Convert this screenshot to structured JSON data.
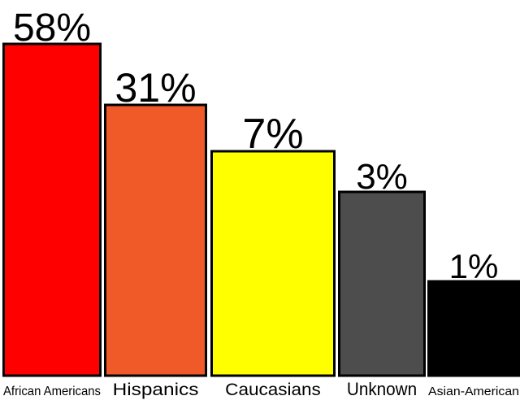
{
  "chart_data": {
    "type": "bar",
    "categories": [
      "African Americans",
      "Hispanics",
      "Caucasians",
      "Unknown",
      "Asian-American"
    ],
    "values": [
      58,
      31,
      7,
      3,
      1
    ],
    "data_labels": [
      "58%",
      "31%",
      "7%",
      "3%",
      "1%"
    ],
    "colors": [
      "#ff0000",
      "#f05a28",
      "#ffff00",
      "#4d4d4d",
      "#000000"
    ],
    "title": "",
    "xlabel": "",
    "ylabel": "",
    "grid": false,
    "legend": "none"
  }
}
